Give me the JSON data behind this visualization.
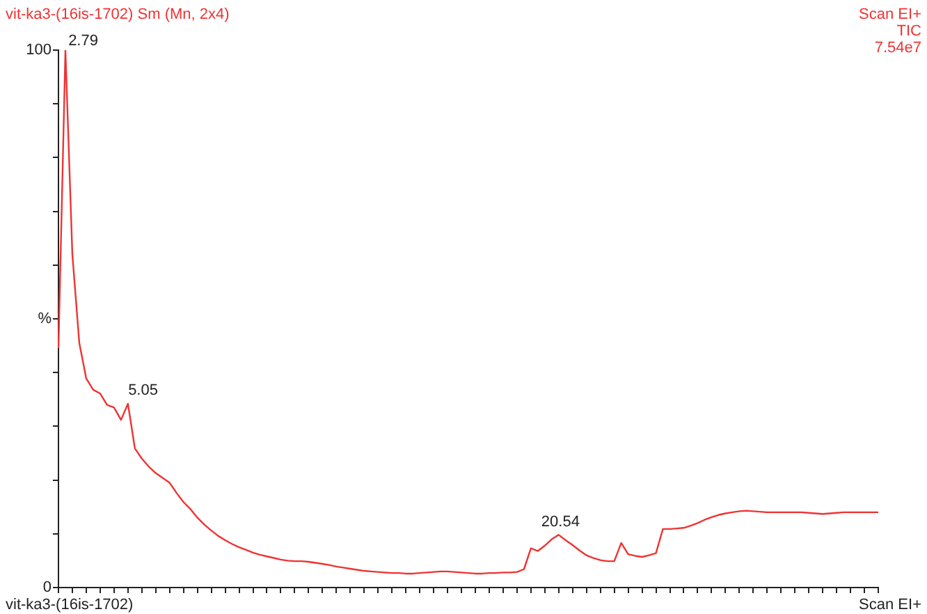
{
  "chart_data": {
    "type": "line",
    "title": "vit-ka3-(16is-1702) Sm (Mn, 2x4)",
    "categories": [
      null,
      null,
      null,
      null,
      null,
      null,
      null,
      null,
      null,
      null,
      null,
      null,
      null,
      null,
      null,
      null,
      null,
      null,
      null,
      null,
      null,
      null,
      null,
      null,
      null,
      null,
      null,
      null,
      null,
      null,
      null,
      null,
      null,
      null,
      null,
      null,
      null,
      null,
      null,
      null,
      null,
      null,
      null,
      null,
      null,
      null,
      null,
      null,
      null,
      null,
      null,
      null,
      null,
      null,
      null,
      null,
      null,
      null,
      null,
      null,
      null,
      null,
      null,
      null,
      null,
      null,
      null,
      null,
      null,
      null,
      null,
      null,
      null,
      null,
      null,
      null,
      null,
      null,
      null,
      null,
      null,
      null,
      null,
      null,
      null,
      null,
      null,
      null,
      null,
      null,
      null,
      null,
      null,
      null,
      null,
      null,
      null,
      null,
      null,
      null,
      null,
      null,
      null,
      null,
      null,
      null,
      null,
      null,
      null,
      null,
      null,
      null,
      null,
      null,
      null,
      null,
      null,
      null,
      null
    ],
    "series": [
      {
        "color": "#f03232",
        "values": [
          44.6,
          100,
          62,
          45.5,
          38.9,
          36.8,
          36.1,
          34.0,
          33.5,
          31.2,
          34.2,
          25.9,
          24,
          22.5,
          21.3,
          20.4,
          19.5,
          17.6,
          15.9,
          14.6,
          13.0,
          11.7,
          10.6,
          9.6,
          8.8,
          8.1,
          7.5,
          7.0,
          6.5,
          6.1,
          5.8,
          5.5,
          5.2,
          5.0,
          4.9,
          4.9,
          4.8,
          4.6,
          4.4,
          4.2,
          3.9,
          3.7,
          3.5,
          3.3,
          3.1,
          3.0,
          2.9,
          2.8,
          2.7,
          2.7,
          2.6,
          2.6,
          2.7,
          2.8,
          2.9,
          3.0,
          3.0,
          2.9,
          2.8,
          2.7,
          2.6,
          2.6,
          2.7,
          2.7,
          2.8,
          2.8,
          2.9,
          3.4,
          7.3,
          6.8,
          7.8,
          9.0,
          9.8,
          8.8,
          7.9,
          6.9,
          6.0,
          5.5,
          5.1,
          4.9,
          4.9,
          8.3,
          6.2,
          5.9,
          5.7,
          6.0,
          6.4,
          10.9,
          10.9,
          11.0,
          11.1,
          11.5,
          12.0,
          12.6,
          13.1,
          13.5,
          13.8,
          14.0,
          14.2,
          14.3,
          14.2,
          14.1,
          14.0,
          14.0,
          14.0,
          14.0,
          14.0,
          14.0,
          13.9,
          13.8,
          13.7,
          13.8,
          13.9,
          14.0,
          14.0,
          14.0,
          14.0,
          14.0,
          14.0
        ]
      }
    ],
    "ylim": [
      0,
      100
    ],
    "yticks": [
      0,
      {
        "value": 10,
        "label": null
      },
      {
        "value": 20,
        "label": null
      },
      {
        "value": 30,
        "label": null
      },
      {
        "value": 40,
        "label": null
      },
      {
        "value": 50,
        "label": "%"
      },
      {
        "value": 60,
        "label": null
      },
      {
        "value": 70,
        "label": null
      },
      {
        "value": 80,
        "label": null
      },
      {
        "value": 90,
        "label": null
      },
      100
    ],
    "tick_labels": "y",
    "annotations": [
      "Scan EI+\nTIC\n7.54e7",
      "vit-ka3-(16is-1702)",
      "Scan EI+",
      "2.79",
      "5.05",
      "20.54"
    ],
    "grid": false,
    "legend": false,
    "marker": "none",
    "line_style": "solid"
  }
}
